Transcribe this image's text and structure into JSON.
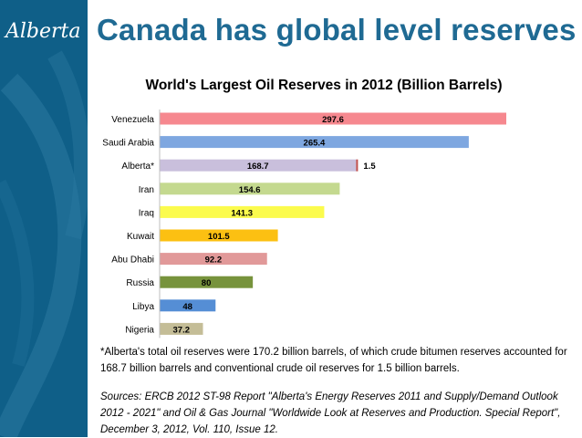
{
  "slide": {
    "logo_text": "Alberta",
    "title": "Canada has global level reserves"
  },
  "chart_data": {
    "type": "bar",
    "orientation": "horizontal",
    "title": "World's Largest Oil Reserves in 2012 (Billion Barrels)",
    "xlabel": "",
    "ylabel": "",
    "xlim": [
      0,
      310
    ],
    "grid": false,
    "legend": "none",
    "categories": [
      "Venezuela",
      "Saudi Arabia",
      "Alberta*",
      "Iran",
      "Iraq",
      "Kuwait",
      "Abu Dhabi",
      "Russia",
      "Libya",
      "Nigeria"
    ],
    "values": [
      297.6,
      265.4,
      168.7,
      154.6,
      141.3,
      101.5,
      92.2,
      80,
      48,
      37.2
    ],
    "value_labels": [
      "297.6",
      "265.4",
      "168.7",
      "154.6",
      "141.3",
      "101.5",
      "92.2",
      "80",
      "48",
      "37.2"
    ],
    "colors": [
      "#f6888f",
      "#7ea7e0",
      "#c9bfdc",
      "#c4d98f",
      "#fbfb4d",
      "#fcc012",
      "#e19999",
      "#77933c",
      "#558ed5",
      "#c4bd97"
    ],
    "stacked_segment": {
      "category": "Alberta*",
      "value": 1.5,
      "label": "1.5",
      "color": "#c0504d"
    }
  },
  "footnote": "*Alberta's total oil reserves were 170.2 billion barrels, of which crude bitumen reserves accounted for 168.7 billion barrels and conventional crude oil reserves for 1.5 billion barrels.",
  "sources": "Sources: ERCB 2012 ST-98 Report \"Alberta's Energy Reserves 2011 and Supply/Demand Outlook 2012 - 2021\" and Oil & Gas Journal \"Worldwide Look at Reserves and Production. Special Report\", December 3, 2012, Vol. 110, Issue 12."
}
